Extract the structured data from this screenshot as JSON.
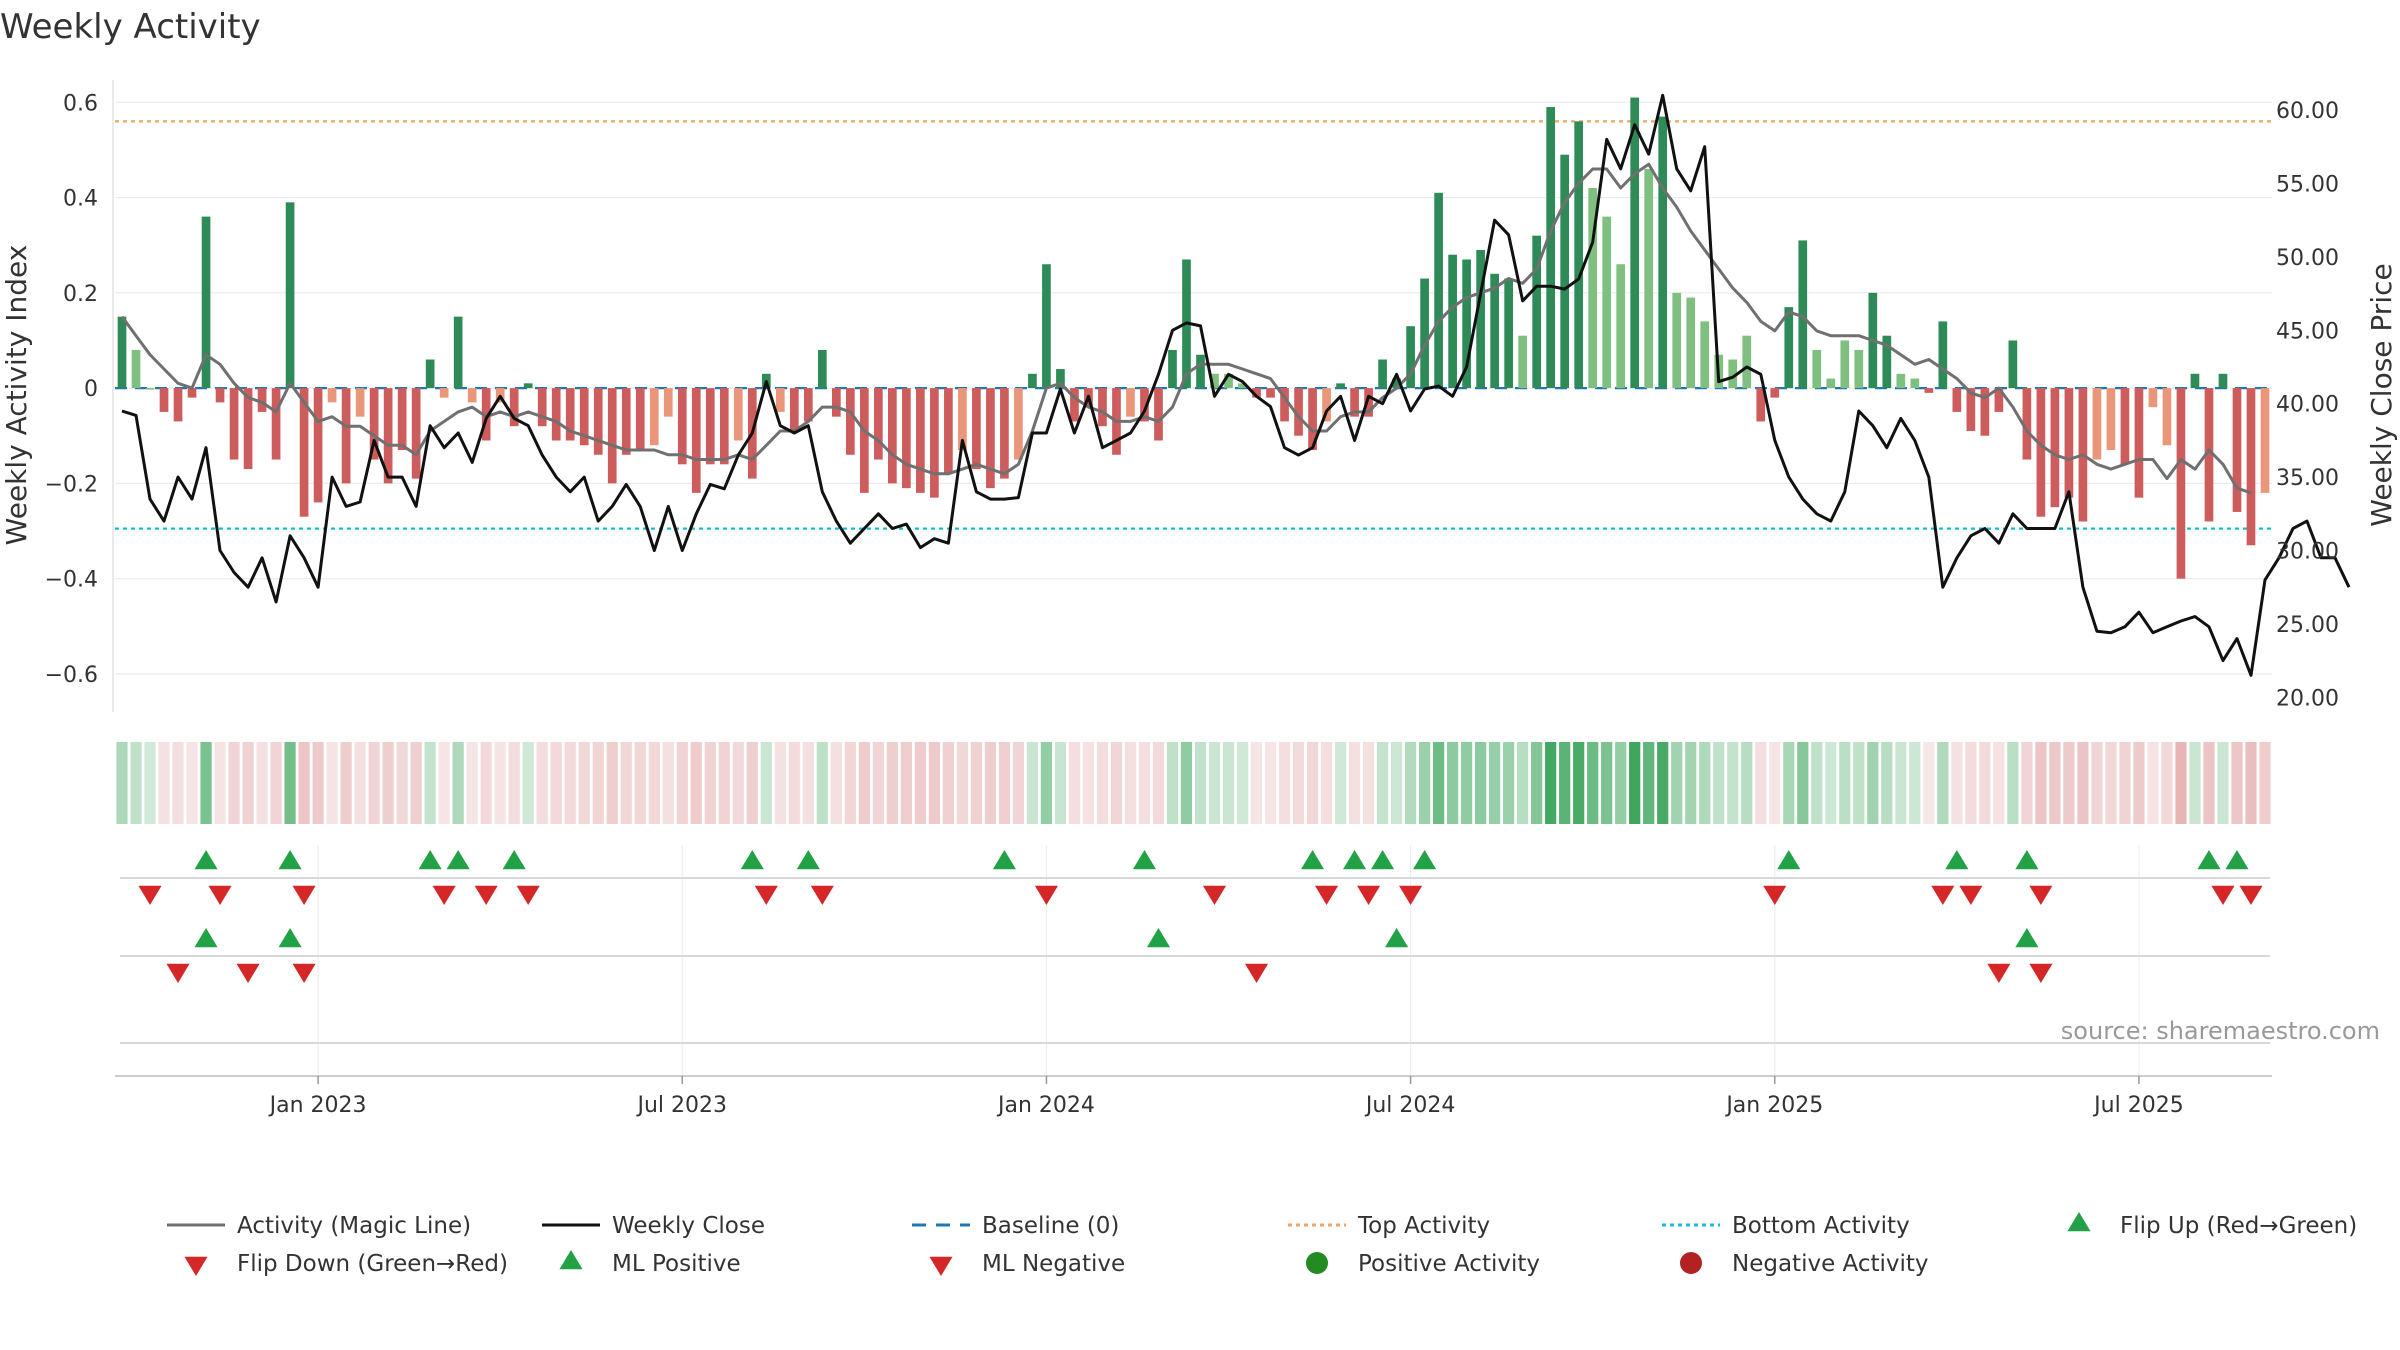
{
  "chart_data": {
    "type": "bar",
    "title": "Weekly Activity",
    "ylabel_left": "Weekly Activity Index",
    "ylabel_right": "Weekly Close Price",
    "source": "source: sharemaestro.com",
    "ylim_left": [
      -0.68,
      0.63
    ],
    "ylim_right": [
      19.0,
      61.5
    ],
    "left_ticks": [
      {
        "v": 0.6,
        "label": "0.6"
      },
      {
        "v": 0.4,
        "label": "0.4"
      },
      {
        "v": 0.2,
        "label": "0.2"
      },
      {
        "v": 0,
        "label": "0"
      },
      {
        "v": -0.2,
        "label": "−0.2"
      },
      {
        "v": -0.4,
        "label": "−0.4"
      },
      {
        "v": -0.6,
        "label": "−0.6"
      }
    ],
    "right_ticks": [
      "60.00",
      "55.00",
      "50.00",
      "45.00",
      "40.00",
      "35.00",
      "30.00",
      "25.00",
      "20.00"
    ],
    "x_ticks": [
      {
        "i": 14,
        "label": "Jan 2023"
      },
      {
        "i": 40,
        "label": "Jul 2023"
      },
      {
        "i": 66,
        "label": "Jan 2024"
      },
      {
        "i": 92,
        "label": "Jul 2024"
      },
      {
        "i": 118,
        "label": "Jan 2025"
      },
      {
        "i": 144,
        "label": "Jul 2025"
      }
    ],
    "top_activity": 0.56,
    "bottom_activity": -0.295,
    "activity": [
      0.15,
      0.08,
      0.0,
      -0.05,
      -0.07,
      -0.02,
      0.36,
      -0.03,
      -0.15,
      -0.17,
      -0.05,
      -0.15,
      0.39,
      -0.27,
      -0.24,
      -0.03,
      -0.2,
      -0.06,
      -0.15,
      -0.2,
      -0.13,
      -0.19,
      0.06,
      -0.02,
      0.15,
      -0.03,
      -0.11,
      -0.03,
      -0.08,
      0.01,
      -0.08,
      -0.11,
      -0.11,
      -0.12,
      -0.14,
      -0.2,
      -0.14,
      -0.13,
      -0.12,
      -0.06,
      -0.16,
      -0.22,
      -0.16,
      -0.16,
      -0.11,
      -0.19,
      0.03,
      -0.05,
      -0.09,
      -0.07,
      0.08,
      -0.06,
      -0.14,
      -0.22,
      -0.15,
      -0.2,
      -0.21,
      -0.22,
      -0.23,
      -0.18,
      -0.13,
      -0.17,
      -0.21,
      -0.19,
      -0.15,
      0.03,
      0.26,
      0.04,
      -0.07,
      -0.04,
      -0.08,
      -0.14,
      -0.06,
      -0.07,
      -0.11,
      0.08,
      0.27,
      0.07,
      0.03,
      0.03,
      0.01,
      -0.02,
      -0.02,
      -0.07,
      -0.1,
      -0.13,
      -0.07,
      0.01,
      -0.06,
      -0.06,
      0.06,
      0.02,
      0.13,
      0.23,
      0.41,
      0.28,
      0.27,
      0.29,
      0.24,
      0.23,
      0.11,
      0.32,
      0.59,
      0.49,
      0.56,
      0.42,
      0.36,
      0.26,
      0.61,
      0.46,
      0.57,
      0.2,
      0.19,
      0.14,
      0.07,
      0.06,
      0.11,
      -0.07,
      -0.02,
      0.17,
      0.31,
      0.08,
      0.02,
      0.1,
      0.08,
      0.2,
      0.11,
      0.03,
      0.02,
      -0.01,
      0.14,
      -0.05,
      -0.09,
      -0.1,
      -0.05,
      0.1,
      -0.15,
      -0.27,
      -0.25,
      -0.23,
      -0.28,
      -0.15,
      -0.13,
      -0.16,
      -0.23,
      -0.04,
      -0.12,
      -0.4,
      0.03,
      -0.28,
      0.03,
      -0.26,
      -0.33,
      -0.22
    ],
    "magic_line": [
      0.15,
      0.11,
      0.07,
      0.04,
      0.01,
      0.0,
      0.07,
      0.05,
      0.01,
      -0.02,
      -0.03,
      -0.05,
      0.01,
      -0.03,
      -0.07,
      -0.06,
      -0.08,
      -0.08,
      -0.1,
      -0.12,
      -0.12,
      -0.14,
      -0.09,
      -0.07,
      -0.05,
      -0.04,
      -0.06,
      -0.05,
      -0.06,
      -0.05,
      -0.06,
      -0.07,
      -0.09,
      -0.1,
      -0.11,
      -0.12,
      -0.13,
      -0.13,
      -0.13,
      -0.14,
      -0.14,
      -0.15,
      -0.15,
      -0.15,
      -0.14,
      -0.15,
      -0.12,
      -0.09,
      -0.09,
      -0.07,
      -0.04,
      -0.04,
      -0.05,
      -0.09,
      -0.11,
      -0.14,
      -0.16,
      -0.17,
      -0.18,
      -0.18,
      -0.17,
      -0.16,
      -0.17,
      -0.18,
      -0.16,
      -0.09,
      0.0,
      0.01,
      -0.02,
      -0.04,
      -0.05,
      -0.07,
      -0.07,
      -0.06,
      -0.07,
      -0.04,
      0.03,
      0.05,
      0.05,
      0.05,
      0.04,
      0.03,
      0.02,
      -0.02,
      -0.06,
      -0.09,
      -0.09,
      -0.06,
      -0.05,
      -0.05,
      -0.02,
      0.0,
      0.03,
      0.09,
      0.14,
      0.17,
      0.19,
      0.2,
      0.21,
      0.23,
      0.22,
      0.25,
      0.33,
      0.39,
      0.43,
      0.46,
      0.46,
      0.42,
      0.45,
      0.47,
      0.42,
      0.38,
      0.33,
      0.29,
      0.25,
      0.21,
      0.18,
      0.14,
      0.12,
      0.16,
      0.15,
      0.12,
      0.11,
      0.11,
      0.11,
      0.1,
      0.09,
      0.07,
      0.05,
      0.06,
      0.04,
      0.02,
      -0.01,
      -0.02,
      0.0,
      -0.04,
      -0.09,
      -0.12,
      -0.14,
      -0.15,
      -0.14,
      -0.16,
      -0.17,
      -0.16,
      -0.15,
      -0.15,
      -0.19,
      -0.15,
      -0.17,
      -0.13,
      -0.16,
      -0.21,
      -0.22
    ],
    "weekly_close": [
      39.5,
      39.2,
      33.5,
      32.0,
      35.0,
      33.5,
      37.0,
      30.0,
      28.5,
      27.5,
      29.5,
      26.5,
      31.0,
      29.5,
      27.5,
      35.0,
      33.0,
      33.3,
      37.5,
      35.0,
      35.0,
      33.0,
      38.5,
      37.0,
      38.0,
      36.0,
      39.0,
      40.5,
      39.0,
      38.5,
      36.5,
      35.0,
      34.0,
      35.0,
      32.0,
      33.0,
      34.5,
      33.0,
      30.0,
      33.0,
      30.0,
      32.5,
      34.5,
      34.2,
      36.5,
      38.0,
      41.5,
      38.5,
      38.0,
      38.5,
      34.0,
      32.0,
      30.5,
      31.5,
      32.5,
      31.5,
      31.8,
      30.2,
      30.8,
      30.5,
      37.5,
      34.0,
      33.5,
      33.5,
      33.6,
      38.0,
      38.0,
      41.0,
      38.0,
      40.5,
      37.0,
      37.5,
      38.0,
      39.5,
      42.0,
      45.0,
      45.5,
      45.3,
      40.5,
      42.0,
      41.5,
      40.5,
      39.8,
      37.0,
      36.5,
      37.0,
      39.5,
      40.5,
      37.5,
      40.5,
      40.0,
      42.0,
      39.5,
      41.0,
      41.2,
      40.5,
      42.5,
      47.5,
      52.5,
      51.5,
      47.0,
      48.0,
      48.0,
      47.8,
      48.5,
      51.0,
      58.0,
      56.0,
      59.0,
      57.0,
      61.0,
      56.0,
      54.5,
      57.5,
      41.5,
      41.8,
      42.5,
      42.0,
      37.5,
      35.0,
      33.5,
      32.5,
      32.0,
      34.0,
      39.5,
      38.5,
      37.0,
      39.0,
      37.5,
      35.0,
      27.5,
      29.5,
      31.0,
      31.5,
      30.5,
      32.5,
      31.5,
      31.5,
      31.5,
      34.0,
      27.5,
      24.5,
      24.4,
      24.8,
      25.8,
      24.4,
      24.8,
      25.2,
      25.5,
      24.8,
      22.5,
      24.0,
      21.5,
      28.0,
      29.5,
      31.5,
      32.0,
      29.5,
      29.5,
      27.5
    ],
    "flip_up": [
      6,
      12,
      22,
      24,
      28,
      45,
      49,
      63,
      73,
      85,
      88,
      90,
      93,
      119,
      131,
      136,
      149,
      151
    ],
    "flip_down": [
      2,
      7,
      13,
      23,
      26,
      29,
      46,
      50,
      66,
      78,
      86,
      89,
      92,
      118,
      130,
      132,
      137,
      150,
      152
    ],
    "ml_positive": [
      6,
      12,
      74,
      91,
      136
    ],
    "ml_negative": [
      4,
      9,
      13,
      81,
      134,
      137
    ],
    "legend": [
      {
        "label": "Activity (Magic Line)",
        "marker": "line-gray"
      },
      {
        "label": "Weekly Close",
        "marker": "line-black"
      },
      {
        "label": "Baseline (0)",
        "marker": "dash-blue"
      },
      {
        "label": "Top Activity",
        "marker": "dot-orange"
      },
      {
        "label": "Bottom Activity",
        "marker": "dot-cyan"
      },
      {
        "label": "Flip Up (Red→Green)",
        "marker": "tri-up"
      },
      {
        "label": "Flip Down (Green→Red)",
        "marker": "tri-down"
      },
      {
        "label": "ML Positive",
        "marker": "tri-up"
      },
      {
        "label": "ML Negative",
        "marker": "tri-down"
      },
      {
        "label": "Positive Activity",
        "marker": "circle-green"
      },
      {
        "label": "Negative Activity",
        "marker": "circle-red"
      }
    ],
    "colors": {
      "pos_strong": "#2e8b57",
      "pos_light": "#7fbf7f",
      "neg_strong": "#cd5c5c",
      "neg_light": "#e9967a",
      "magic": "#707070",
      "close": "#111111",
      "baseline": "#1f77b4",
      "top": "#f4a460",
      "bottom": "#17becf",
      "tri_up": "#22a146",
      "tri_down": "#d62728",
      "pos_circle": "#228b22",
      "neg_circle": "#b22222"
    }
  }
}
